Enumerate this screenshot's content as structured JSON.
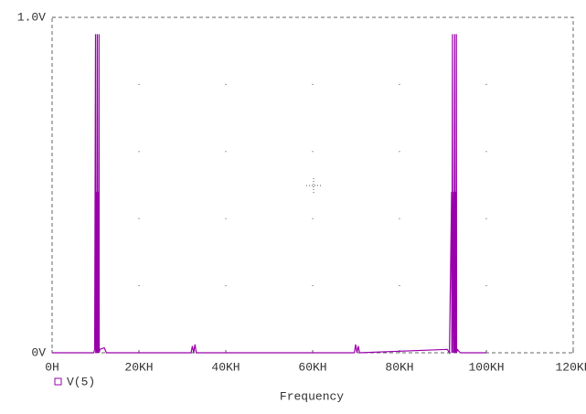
{
  "chart_data": {
    "type": "line",
    "x_label": "Frequency",
    "xlim": [
      0,
      120000
    ],
    "xticks": [
      {
        "value": 0,
        "label": "0H"
      },
      {
        "value": 20000,
        "label": "20KH"
      },
      {
        "value": 40000,
        "label": "40KH"
      },
      {
        "value": 60000,
        "label": "60KH"
      },
      {
        "value": 80000,
        "label": "80KH"
      },
      {
        "value": 100000,
        "label": "100KH"
      },
      {
        "value": 120000,
        "label": "120KH"
      }
    ],
    "ylim": [
      0,
      1
    ],
    "yticks": [
      {
        "value": 0,
        "label": "0V"
      },
      {
        "value": 1,
        "label": "1.0V"
      }
    ],
    "grid": true,
    "x": [
      0,
      9600,
      9800,
      10000,
      10050,
      10200,
      10300,
      10400,
      10450,
      10600,
      10700,
      10800,
      10850,
      11000,
      12000,
      12500,
      32000,
      32300,
      32600,
      32900,
      33200,
      69600,
      69900,
      70200,
      70500,
      70800,
      91000,
      91500,
      92000,
      92050,
      92200,
      92250,
      92500,
      92550,
      92700,
      92750,
      92900,
      93000,
      93100,
      93150,
      93300,
      94000,
      100000
    ],
    "series": [
      {
        "name": "V(5)",
        "color": "#9900aa",
        "values": [
          0,
          0,
          0.01,
          0.95,
          0,
          0.48,
          0,
          0.95,
          0,
          0.48,
          0,
          0.95,
          0,
          0.01,
          0.015,
          0,
          0,
          0.02,
          0,
          0.025,
          0,
          0,
          0.025,
          0,
          0.02,
          0,
          0.01,
          0,
          0.48,
          0,
          0.95,
          0,
          0.48,
          0,
          0.95,
          0,
          0.48,
          0,
          0.95,
          0,
          0.01,
          0,
          0
        ]
      }
    ]
  }
}
